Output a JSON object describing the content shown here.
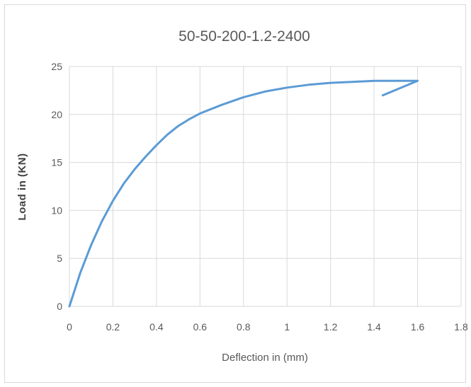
{
  "chart_data": {
    "type": "line",
    "title": "50-50-200-1.2-2400",
    "xlabel": "Deflection in (mm)",
    "ylabel": "Load in (KN)",
    "xlim": [
      0,
      1.8
    ],
    "ylim": [
      0,
      25
    ],
    "x_ticks": [
      "0",
      "0.2",
      "0.4",
      "0.6",
      "0.8",
      "1",
      "1.2",
      "1.4",
      "1.6",
      "1.8"
    ],
    "y_ticks": [
      "0",
      "5",
      "10",
      "15",
      "20",
      "25"
    ],
    "grid": true,
    "line_color": "#5b9bd5",
    "series": [
      {
        "x": [
          0,
          0.05,
          0.1,
          0.15,
          0.2,
          0.25,
          0.3,
          0.35,
          0.4,
          0.45,
          0.5,
          0.55,
          0.6,
          0.7,
          0.8,
          0.9,
          1.0,
          1.1,
          1.2,
          1.3,
          1.4,
          1.5,
          1.6,
          1.44
        ],
        "y": [
          0,
          3.5,
          6.4,
          8.9,
          11.0,
          12.8,
          14.3,
          15.6,
          16.8,
          17.9,
          18.8,
          19.5,
          20.1,
          21.0,
          21.8,
          22.4,
          22.8,
          23.1,
          23.3,
          23.4,
          23.5,
          23.5,
          23.5,
          22.0
        ]
      }
    ]
  }
}
